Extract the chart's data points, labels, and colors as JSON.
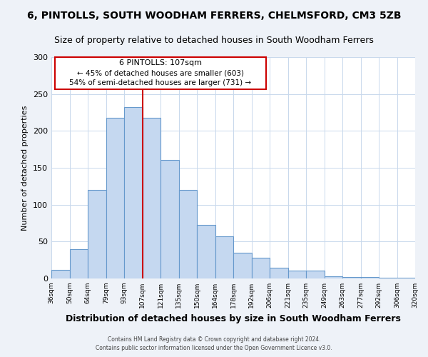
{
  "title": "6, PINTOLLS, SOUTH WOODHAM FERRERS, CHELMSFORD, CM3 5ZB",
  "subtitle": "Size of property relative to detached houses in South Woodham Ferrers",
  "xlabel": "Distribution of detached houses by size in South Woodham Ferrers",
  "ylabel": "Number of detached properties",
  "categories": [
    "36sqm",
    "50sqm",
    "64sqm",
    "79sqm",
    "93sqm",
    "107sqm",
    "121sqm",
    "135sqm",
    "150sqm",
    "164sqm",
    "178sqm",
    "192sqm",
    "206sqm",
    "221sqm",
    "235sqm",
    "249sqm",
    "263sqm",
    "277sqm",
    "292sqm",
    "306sqm",
    "320sqm"
  ],
  "bar_values": [
    12,
    40,
    120,
    218,
    232,
    218,
    161,
    120,
    73,
    57,
    35,
    28,
    15,
    11,
    11,
    3,
    2,
    2,
    1,
    1
  ],
  "bar_color": "#c5d8f0",
  "bar_edge_color": "#6699cc",
  "marker_label": "6 PINTOLLS: 107sqm",
  "annotation_line1": "← 45% of detached houses are smaller (603)",
  "annotation_line2": "54% of semi-detached houses are larger (731) →",
  "vline_color": "#cc0000",
  "box_edge_color": "#cc0000",
  "footer1": "Contains HM Land Registry data © Crown copyright and database right 2024.",
  "footer2": "Contains public sector information licensed under the Open Government Licence v3.0.",
  "ylim": [
    0,
    300
  ],
  "yticks": [
    0,
    50,
    100,
    150,
    200,
    250,
    300
  ],
  "bg_color": "#eef2f8",
  "plot_bg_color": "#ffffff",
  "title_fontsize": 10,
  "subtitle_fontsize": 9
}
